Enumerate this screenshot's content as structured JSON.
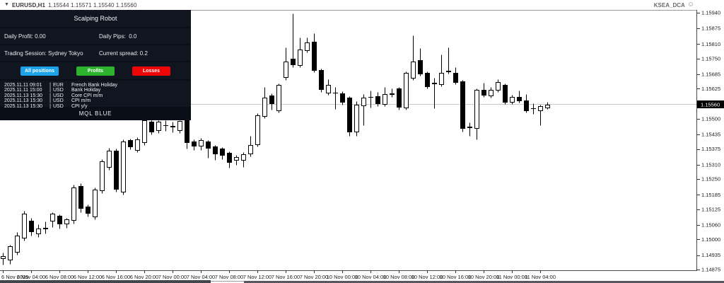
{
  "header": {
    "symbol_period": "EURUSD,H1",
    "ohlc": "1.15544 1.15571 1.15540 1.15560",
    "ea_name": "KSEA_DCA",
    "ea_status_icon": "smiley-face"
  },
  "panel": {
    "title": "Scalping Robot",
    "rows": [
      {
        "left": "Daily Profit: 0.00",
        "right": "Daily Pips:  0.0"
      },
      {
        "left": "Trading Session: Sydney Tokyo",
        "right": "Current spread: 0.2"
      }
    ],
    "buttons": [
      {
        "label": "All positions",
        "color": "#1ba2e8"
      },
      {
        "label": "Profits",
        "color": "#2db32d"
      },
      {
        "label": "Losses",
        "color": "#ee0505"
      }
    ],
    "news": [
      {
        "datetime": "2025.11.11 09:01",
        "currency": "EUR",
        "event": "French Bank Holiday"
      },
      {
        "datetime": "2025.11.11 15:00",
        "currency": "USD",
        "event": "Bank Holiday"
      },
      {
        "datetime": "2025.11.13 15:30",
        "currency": "USD",
        "event": "Core CPI m/m"
      },
      {
        "datetime": "2025.11.13 15:30",
        "currency": "USD",
        "event": "CPI m/m"
      },
      {
        "datetime": "2025.11.13 15:30",
        "currency": "USD",
        "event": "CPI y/y"
      }
    ],
    "footer": "MQL BLUE"
  },
  "chart_data": {
    "type": "candlestick",
    "symbol": "EURUSD",
    "timeframe": "H1",
    "bull_color": "#ffffff",
    "bear_color": "#000000",
    "background": "#ffffff",
    "current_price": 1.1556,
    "current_price_line_color": "#c8c8c8",
    "visible_price_top": 1.159517,
    "visible_price_bottom": 1.148722,
    "price_labels": [
      {
        "price": 1.1594
      },
      {
        "price": 1.15875
      },
      {
        "price": 1.1581
      },
      {
        "price": 1.1575
      },
      {
        "price": 1.15685
      },
      {
        "price": 1.15625
      },
      {
        "price": 1.1556,
        "current": true
      },
      {
        "price": 1.155
      },
      {
        "price": 1.15435
      },
      {
        "price": 1.15375
      },
      {
        "price": 1.1531
      },
      {
        "price": 1.1525
      },
      {
        "price": 1.15185
      },
      {
        "price": 1.15125
      },
      {
        "price": 1.1506
      },
      {
        "price": 1.15
      },
      {
        "price": 1.14935
      },
      {
        "price": 1.14875
      }
    ],
    "time_labels": [
      {
        "i": 0,
        "label": "6 Nov 2025"
      },
      {
        "i": 4,
        "label": "6 Nov 04:00"
      },
      {
        "i": 8,
        "label": "6 Nov 08:00"
      },
      {
        "i": 12,
        "label": "6 Nov 12:00"
      },
      {
        "i": 16,
        "label": "6 Nov 16:00"
      },
      {
        "i": 20,
        "label": "6 Nov 20:00"
      },
      {
        "i": 24,
        "label": "7 Nov 00:00"
      },
      {
        "i": 28,
        "label": "7 Nov 04:00"
      },
      {
        "i": 32,
        "label": "7 Nov 08:00"
      },
      {
        "i": 36,
        "label": "7 Nov 12:00"
      },
      {
        "i": 40,
        "label": "7 Nov 16:00"
      },
      {
        "i": 44,
        "label": "7 Nov 20:00"
      },
      {
        "i": 48,
        "label": "10 Nov 00:00"
      },
      {
        "i": 52,
        "label": "10 Nov 04:00"
      },
      {
        "i": 56,
        "label": "10 Nov 08:00"
      },
      {
        "i": 60,
        "label": "10 Nov 12:00"
      },
      {
        "i": 64,
        "label": "10 Nov 16:00"
      },
      {
        "i": 68,
        "label": "10 Nov 20:00"
      },
      {
        "i": 72,
        "label": "11 Nov 00:00"
      },
      {
        "i": 76,
        "label": "11 Nov 04:00"
      }
    ],
    "candles": [
      [
        1.1492,
        1.14945,
        1.14895,
        1.1493
      ],
      [
        1.14913,
        1.14978,
        1.149,
        1.14972
      ],
      [
        1.14945,
        1.15031,
        1.14938,
        1.15016
      ],
      [
        1.15004,
        1.15119,
        1.14995,
        1.15107
      ],
      [
        1.15078,
        1.1509,
        1.15016,
        1.15031
      ],
      [
        1.15022,
        1.15062,
        1.1501,
        1.15045
      ],
      [
        1.15048,
        1.15075,
        1.15025,
        1.15042
      ],
      [
        1.15075,
        1.15113,
        1.15051,
        1.15107
      ],
      [
        1.15098,
        1.15104,
        1.15046,
        1.15063
      ],
      [
        1.15063,
        1.1509,
        1.15048,
        1.15083
      ],
      [
        1.15078,
        1.15227,
        1.15066,
        1.15215
      ],
      [
        1.15221,
        1.15233,
        1.15113,
        1.15127
      ],
      [
        1.15136,
        1.15145,
        1.15095,
        1.15107
      ],
      [
        1.15092,
        1.15215,
        1.15083,
        1.15207
      ],
      [
        1.15201,
        1.15333,
        1.15192,
        1.15324
      ],
      [
        1.15297,
        1.1538,
        1.15289,
        1.15368
      ],
      [
        1.15368,
        1.15377,
        1.15198,
        1.15207
      ],
      [
        1.15195,
        1.15415,
        1.15186,
        1.15406
      ],
      [
        1.15412,
        1.15418,
        1.15374,
        1.15383
      ],
      [
        1.15368,
        1.15424,
        1.15362,
        1.15415
      ],
      [
        1.154,
        1.155,
        1.15391,
        1.15494
      ],
      [
        1.15488,
        1.15494,
        1.15435,
        1.15444
      ],
      [
        1.1545,
        1.15494,
        1.15441,
        1.15488
      ],
      [
        1.15473,
        1.15494,
        1.1545,
        1.1547
      ],
      [
        1.1547,
        1.15488,
        1.15444,
        1.15464
      ],
      [
        1.1545,
        1.15495,
        1.1544,
        1.1549
      ],
      [
        1.15509,
        1.15512,
        1.15377,
        1.154
      ],
      [
        1.15406,
        1.15415,
        1.15371,
        1.15385
      ],
      [
        1.15385,
        1.15421,
        1.15371,
        1.15412
      ],
      [
        1.15406,
        1.15412,
        1.15339,
        1.15377
      ],
      [
        1.15385,
        1.15391,
        1.1533,
        1.15353
      ],
      [
        1.15377,
        1.15383,
        1.15333,
        1.15347
      ],
      [
        1.15359,
        1.15365,
        1.15298,
        1.15318
      ],
      [
        1.15327,
        1.1535,
        1.1531,
        1.15341
      ],
      [
        1.15327,
        1.15362,
        1.15301,
        1.15353
      ],
      [
        1.15353,
        1.1543,
        1.15344,
        1.15391
      ],
      [
        1.15391,
        1.15523,
        1.15385,
        1.15514
      ],
      [
        1.15509,
        1.15632,
        1.15503,
        1.15588
      ],
      [
        1.15597,
        1.15606,
        1.15538,
        1.15562
      ],
      [
        1.15532,
        1.15647,
        1.15526,
        1.1564
      ],
      [
        1.1567,
        1.15797,
        1.15661,
        1.15738
      ],
      [
        1.1575,
        1.15938,
        1.15715,
        1.15724
      ],
      [
        1.1572,
        1.15837,
        1.15714,
        1.15787
      ],
      [
        1.15783,
        1.15838,
        1.15777,
        1.15817
      ],
      [
        1.15819,
        1.15856,
        1.15693,
        1.15699
      ],
      [
        1.15701,
        1.15707,
        1.15612,
        1.15621
      ],
      [
        1.15606,
        1.15664,
        1.156,
        1.1564
      ],
      [
        1.15609,
        1.15632,
        1.1554,
        1.15606
      ],
      [
        1.15606,
        1.15615,
        1.15559,
        1.15568
      ],
      [
        1.15588,
        1.15594,
        1.1543,
        1.15444
      ],
      [
        1.15444,
        1.15573,
        1.1543,
        1.15559
      ],
      [
        1.15553,
        1.15603,
        1.15473,
        1.15588
      ],
      [
        1.15588,
        1.15617,
        1.15546,
        1.1559
      ],
      [
        1.15594,
        1.15612,
        1.15553,
        1.15562
      ],
      [
        1.15559,
        1.15632,
        1.15553,
        1.15603
      ],
      [
        1.15606,
        1.15626,
        1.15591,
        1.15601
      ],
      [
        1.15626,
        1.15632,
        1.15538,
        1.15547
      ],
      [
        1.15544,
        1.15696,
        1.15537,
        1.1569
      ],
      [
        1.15668,
        1.15846,
        1.15662,
        1.15738
      ],
      [
        1.15743,
        1.15792,
        1.15679,
        1.15685
      ],
      [
        1.1569,
        1.15696,
        1.15625,
        1.15631
      ],
      [
        1.15649,
        1.1567,
        1.15545,
        1.15643
      ],
      [
        1.15641,
        1.15768,
        1.15635,
        1.1569
      ],
      [
        1.15699,
        1.15797,
        1.15687,
        1.15693
      ],
      [
        1.1569,
        1.15714,
        1.15644,
        1.1565
      ],
      [
        1.15655,
        1.15661,
        1.15448,
        1.1546
      ],
      [
        1.15468,
        1.15485,
        1.1543,
        1.15462
      ],
      [
        1.15458,
        1.15627,
        1.15416,
        1.15621
      ],
      [
        1.15621,
        1.15651,
        1.15591,
        1.15597
      ],
      [
        1.15594,
        1.15632,
        1.15588,
        1.15621
      ],
      [
        1.15617,
        1.15664,
        1.15611,
        1.15653
      ],
      [
        1.15641,
        1.15647,
        1.15561,
        1.15567
      ],
      [
        1.15567,
        1.15601,
        1.15561,
        1.15592
      ],
      [
        1.1559,
        1.15616,
        1.15567,
        1.15573
      ],
      [
        1.15577,
        1.15603,
        1.15527,
        1.15533
      ],
      [
        1.1554,
        1.15565,
        1.1552,
        1.15545
      ],
      [
        1.15533,
        1.15559,
        1.15474,
        1.15553
      ],
      [
        1.15544,
        1.15571,
        1.1554,
        1.1556
      ]
    ]
  }
}
